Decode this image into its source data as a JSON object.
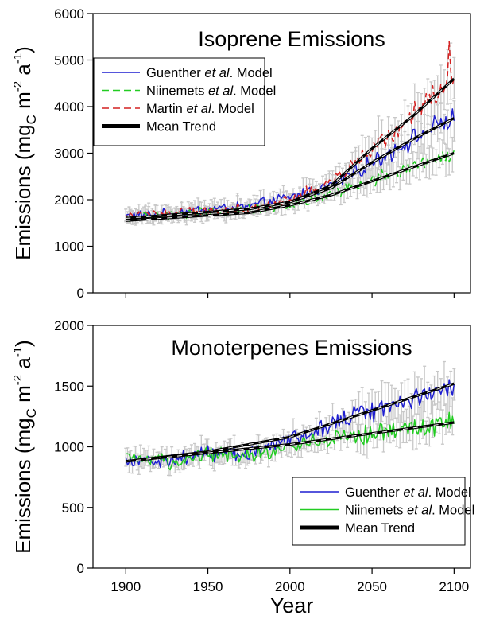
{
  "xlabel": "Year",
  "chart_data": [
    {
      "type": "line",
      "title": "Isoprene Emissions",
      "ylabel": {
        "main": "Emissions (mg",
        "sub": "C",
        "mid": " m",
        "sup1": "-2",
        "mid2": " a",
        "sup2": "-1",
        "end": ")"
      },
      "xlim": [
        1880,
        2110
      ],
      "ylim": [
        0,
        6000
      ],
      "xticks": [
        "1900",
        "1950",
        "2000",
        "2050",
        "2100"
      ],
      "yticks": [
        "0",
        "1000",
        "2000",
        "3000",
        "4000",
        "5000",
        "6000"
      ],
      "legend_position": "top-left",
      "legend": [
        {
          "pre": "Guenther ",
          "ital": "et al",
          "post": ". Model",
          "color": "#1f1fd0",
          "dash": "none",
          "width": 1.6
        },
        {
          "pre": "Niinemets ",
          "ital": "et al",
          "post": ". Model",
          "color": "#22cc22",
          "dash": "9 5",
          "width": 1.6
        },
        {
          "pre": "Martin ",
          "ital": "et al",
          "post": ". Model",
          "color": "#d42020",
          "dash": "9 5",
          "width": 1.6
        },
        {
          "pre": "Mean Trend",
          "ital": "",
          "post": "",
          "color": "#000000",
          "dash": "none",
          "width": 5
        }
      ],
      "series": [
        {
          "name": "Guenther et al. Model",
          "color": "#1f1fd0",
          "dash": "none",
          "x": [
            1900,
            1925,
            1950,
            1975,
            2000,
            2025,
            2050,
            2075,
            2090,
            2100
          ],
          "y": [
            1650,
            1700,
            1800,
            1850,
            2050,
            2300,
            2800,
            3300,
            3600,
            3750
          ]
        },
        {
          "name": "Niinemets et al. Model",
          "color": "#22cc22",
          "dash": "7 4",
          "x": [
            1900,
            1925,
            1950,
            1975,
            2000,
            2025,
            2050,
            2075,
            2090,
            2100
          ],
          "y": [
            1600,
            1650,
            1750,
            1780,
            1900,
            2150,
            2400,
            2700,
            2900,
            3000
          ]
        },
        {
          "name": "Martin et al. Model",
          "color": "#d42020",
          "dash": "7 4",
          "x": [
            1900,
            1925,
            1950,
            1975,
            2000,
            2025,
            2050,
            2075,
            2090,
            2100
          ],
          "y": [
            1650,
            1700,
            1750,
            1800,
            2000,
            2350,
            3100,
            3800,
            4300,
            4600
          ]
        }
      ],
      "trends": [
        {
          "x": [
            1900,
            1975,
            2000,
            2025,
            2050,
            2075,
            2100
          ],
          "y": [
            1600,
            1800,
            1950,
            2300,
            3100,
            3800,
            4600
          ]
        },
        {
          "x": [
            1900,
            1975,
            2000,
            2025,
            2050,
            2075,
            2100
          ],
          "y": [
            1600,
            1800,
            1950,
            2250,
            2800,
            3300,
            3750
          ]
        },
        {
          "x": [
            1900,
            1975,
            2000,
            2025,
            2050,
            2075,
            2100
          ],
          "y": [
            1550,
            1720,
            1880,
            2100,
            2400,
            2700,
            3000
          ]
        }
      ],
      "spike": {
        "x": 2097,
        "y": 5400
      }
    },
    {
      "type": "line",
      "title": "Monoterpenes Emissions",
      "ylabel": {
        "main": "Emissions (mg",
        "sub": "C",
        "mid": " m",
        "sup1": "-2",
        "mid2": " a",
        "sup2": "-1",
        "end": ")"
      },
      "xlim": [
        1880,
        2110
      ],
      "ylim": [
        0,
        2000
      ],
      "xticks": [
        "1900",
        "1950",
        "2000",
        "2050",
        "2100"
      ],
      "yticks": [
        "0",
        "500",
        "1000",
        "1500",
        "2000"
      ],
      "legend_position": "bottom-right",
      "legend": [
        {
          "pre": "Guenther ",
          "ital": "et al",
          "post": ". Model",
          "color": "#1f1fd0",
          "dash": "none",
          "width": 1.6
        },
        {
          "pre": "Niinemets ",
          "ital": "et al",
          "post": ". Model",
          "color": "#22cc22",
          "dash": "none",
          "width": 1.6
        },
        {
          "pre": "Mean Trend",
          "ital": "",
          "post": "",
          "color": "#000000",
          "dash": "none",
          "width": 5
        }
      ],
      "series": [
        {
          "name": "Guenther et al. Model",
          "color": "#1f1fd0",
          "dash": "none",
          "x": [
            1900,
            1925,
            1950,
            1975,
            2000,
            2025,
            2050,
            2075,
            2090,
            2100
          ],
          "y": [
            900,
            880,
            950,
            950,
            1050,
            1200,
            1300,
            1400,
            1480,
            1500
          ]
        },
        {
          "name": "Niinemets et al. Model",
          "color": "#22cc22",
          "dash": "none",
          "x": [
            1900,
            1925,
            1950,
            1975,
            2000,
            2025,
            2050,
            2075,
            2090,
            2100
          ],
          "y": [
            900,
            870,
            940,
            930,
            1000,
            1080,
            1100,
            1150,
            1180,
            1200
          ]
        }
      ],
      "trends": [
        {
          "x": [
            1900,
            1950,
            2000,
            2050,
            2100
          ],
          "y": [
            880,
            960,
            1080,
            1300,
            1520
          ]
        },
        {
          "x": [
            1900,
            1950,
            2000,
            2050,
            2100
          ],
          "y": [
            880,
            950,
            1020,
            1110,
            1200
          ]
        }
      ],
      "spike": null
    }
  ]
}
